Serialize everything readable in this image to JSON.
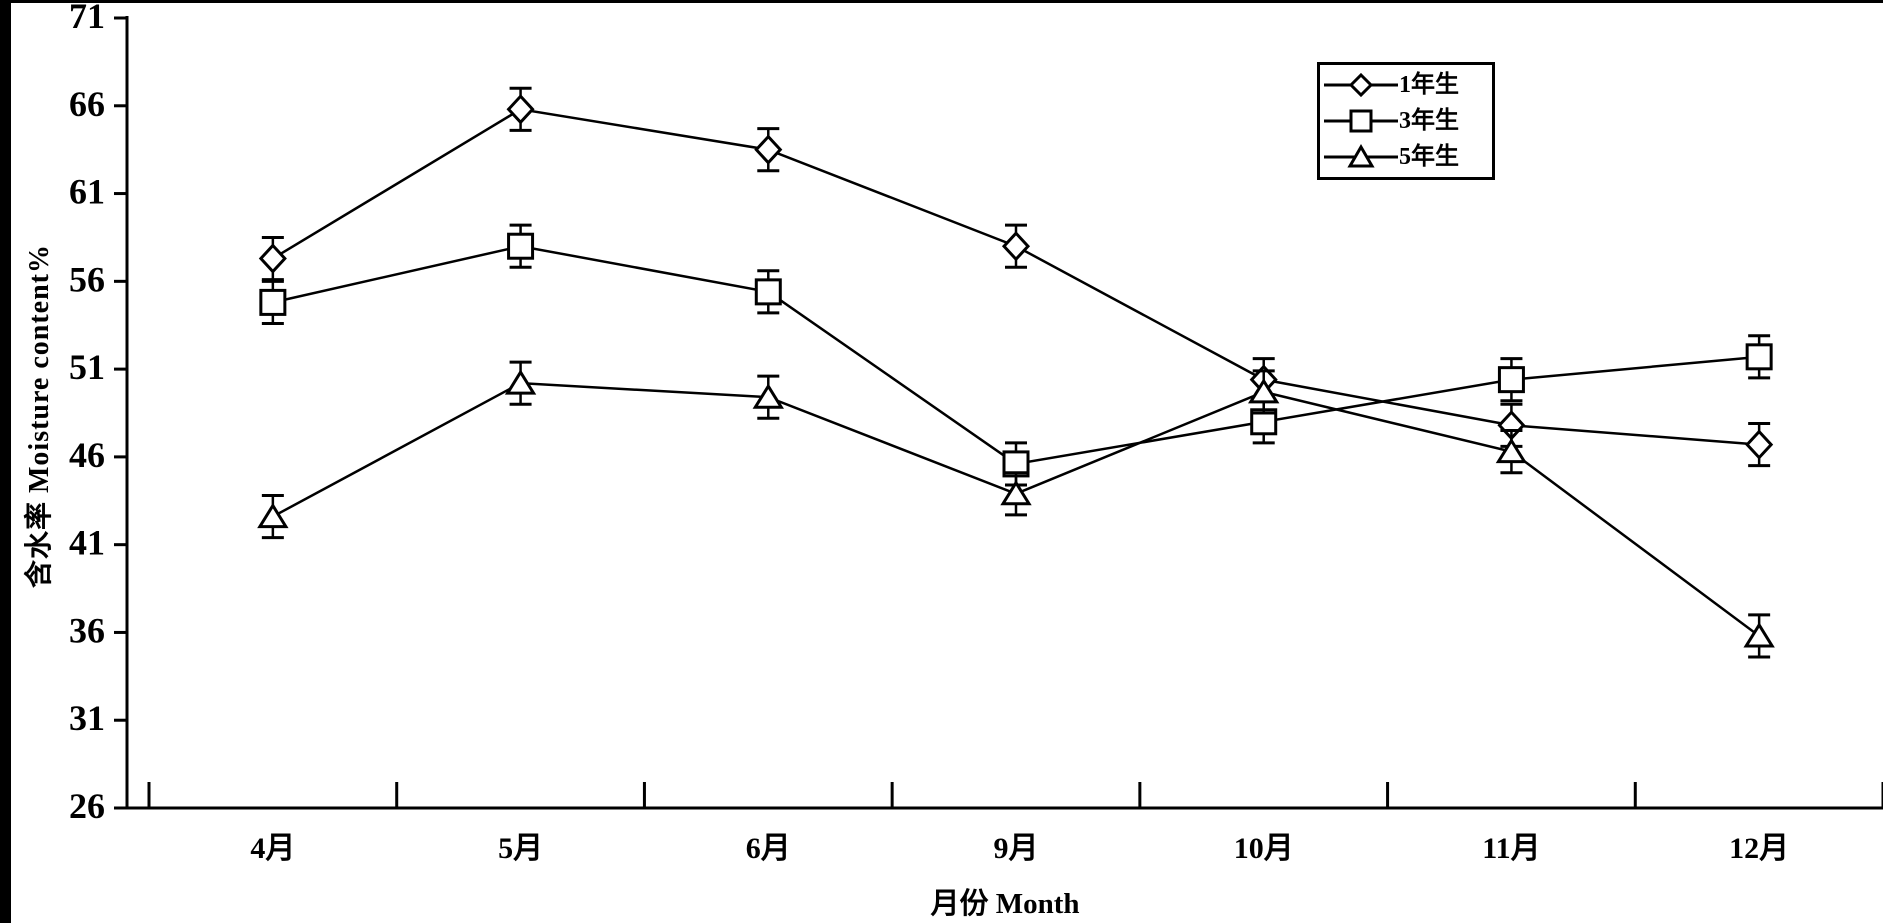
{
  "chart_data": {
    "type": "line",
    "title": "",
    "xlabel": "月份 Month",
    "ylabel": "含水率 Moisture content%",
    "categories": [
      "4月",
      "5月",
      "6月",
      "9月",
      "10月",
      "11月",
      "12月"
    ],
    "yticks": [
      26,
      31,
      36,
      41,
      46,
      51,
      56,
      61,
      66,
      71
    ],
    "ylim": [
      26,
      71
    ],
    "grid": false,
    "legend_position": "top-right",
    "line_color": "#000000",
    "marker_fill": "#ffffff",
    "background_color": "#ffffff",
    "error_bar_size": 1.2,
    "series": [
      {
        "name": "1年生",
        "marker": "diamond",
        "values": [
          57.3,
          65.8,
          63.5,
          58.0,
          50.4,
          47.8,
          46.7
        ]
      },
      {
        "name": "3年生",
        "marker": "square",
        "values": [
          54.8,
          58.0,
          55.4,
          45.6,
          48.0,
          50.4,
          51.7
        ]
      },
      {
        "name": "5年生",
        "marker": "triangle",
        "values": [
          42.6,
          50.2,
          49.4,
          43.9,
          49.7,
          46.3,
          35.8
        ]
      }
    ]
  }
}
